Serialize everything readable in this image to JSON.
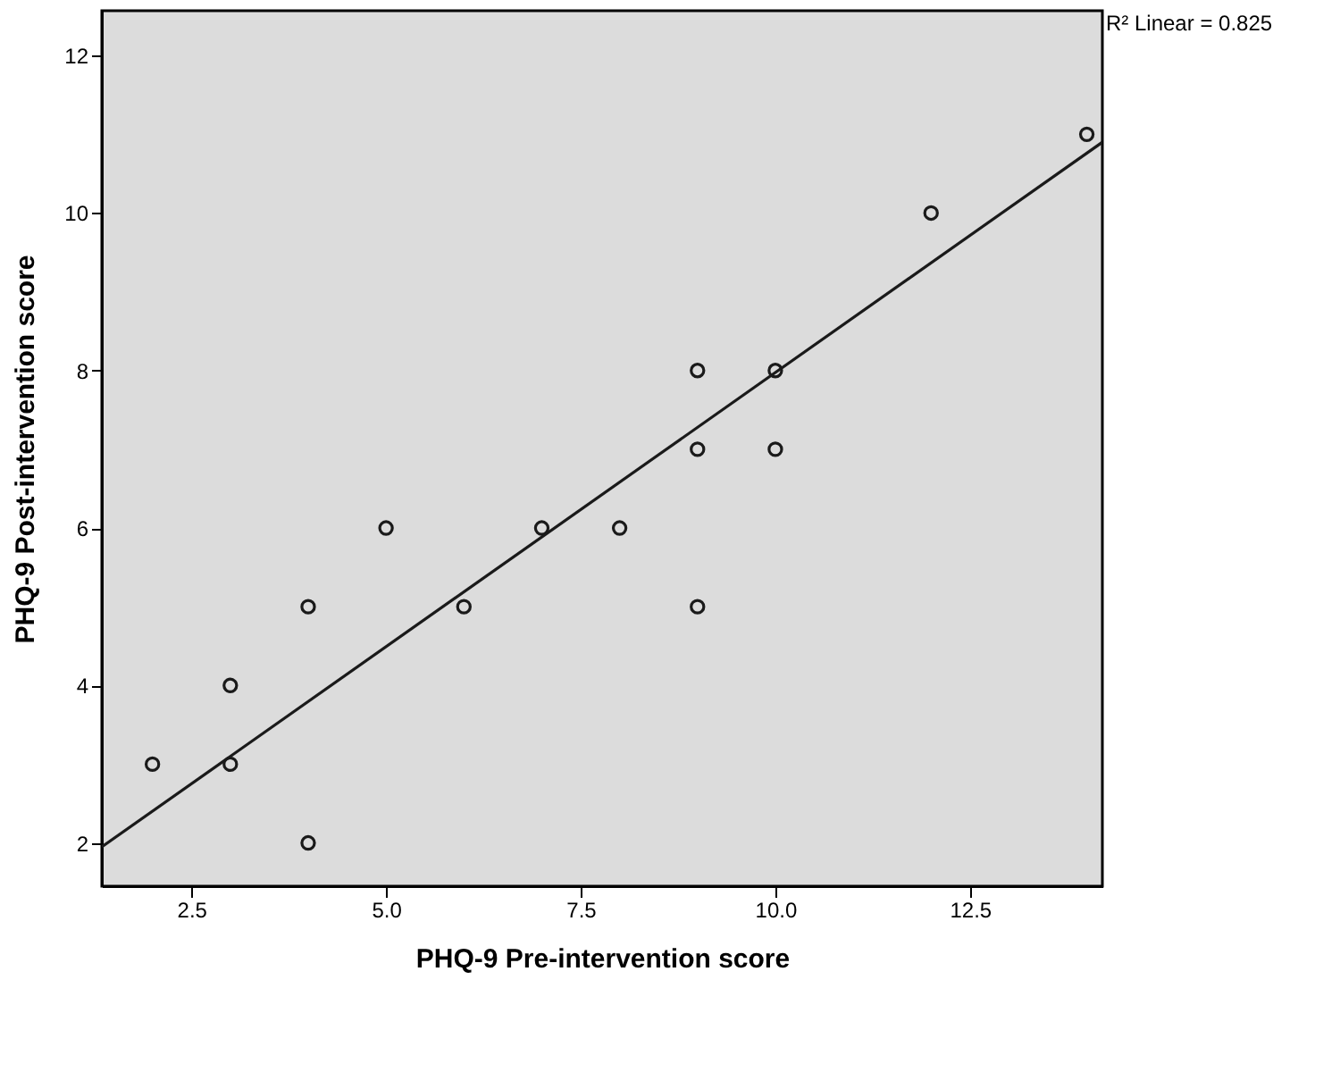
{
  "chart_data": {
    "type": "scatter",
    "xlabel": "PHQ-9 Pre-intervention score",
    "ylabel": "PHQ-9 Post-intervention score",
    "annotations": [
      "R² Linear = 0.825"
    ],
    "series": [
      {
        "color": "#1a1a1a",
        "marker": "circle",
        "x": [
          2,
          3,
          3,
          4,
          4,
          5,
          6,
          7,
          8,
          9,
          9,
          9,
          10,
          10,
          12,
          14
        ],
        "values": [
          3,
          4,
          3,
          5,
          2,
          6,
          5,
          6,
          6,
          8,
          7,
          5,
          8,
          7,
          10,
          11
        ]
      },
      {
        "type": "line",
        "color": "#1a1a1a",
        "x": [
          1.35,
          14.2
        ],
        "values": [
          1.95,
          10.9
        ]
      }
    ],
    "xlim": [
      1.35,
      14.2
    ],
    "xticks": [
      2.5,
      {
        "value": 5,
        "label": "5.0"
      },
      7.5,
      {
        "value": 10,
        "label": "10.0"
      },
      12.5
    ],
    "ylim": [
      1.45,
      12.57
    ],
    "yticks": [
      2,
      4,
      6,
      8,
      10,
      12
    ],
    "grid": false
  }
}
